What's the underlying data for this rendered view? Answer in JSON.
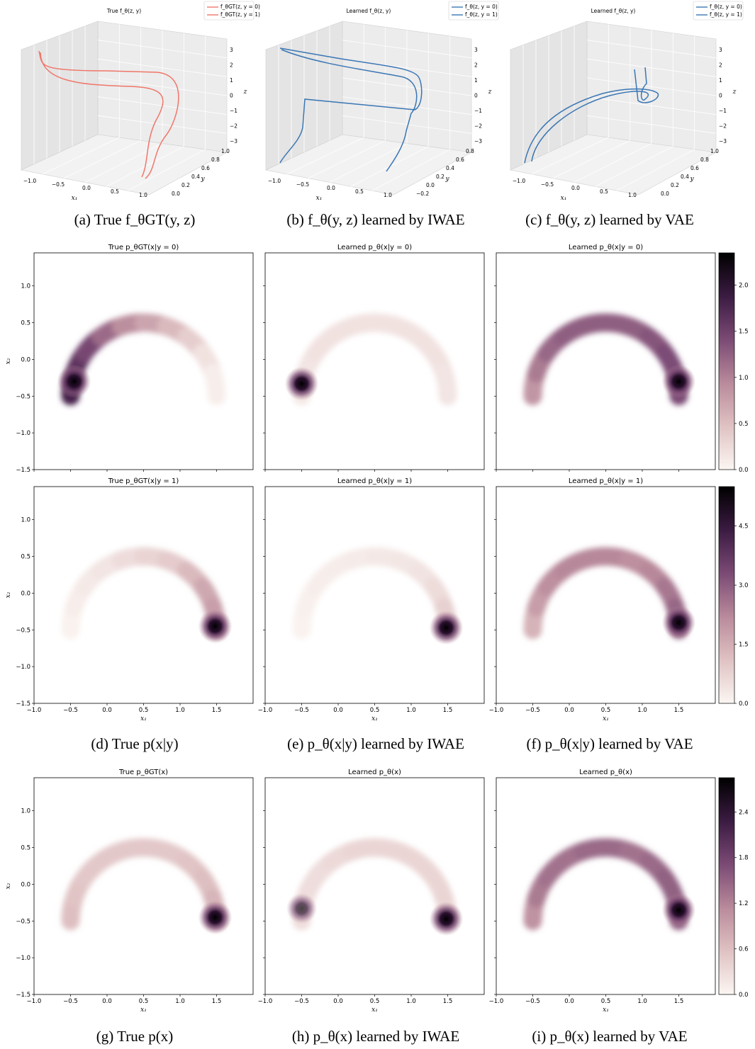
{
  "colors": {
    "true_curve": "#f0766a",
    "learned_curve": "#3a76b4",
    "colormap": [
      "#fbf6f2",
      "#e0c2c3",
      "#b98a9b",
      "#7b4a75",
      "#3b1b42",
      "#000000"
    ]
  },
  "plots3d": [
    {
      "title": "True f_θ(z, y)",
      "color": "true_curve",
      "legend": [
        "f_θGT(z, y = 0)",
        "f_θGT(z, y = 1)"
      ],
      "x1_ticks": [
        "−1.0",
        "−0.5",
        "0.0",
        "0.5",
        "1.0"
      ],
      "y_ticks": [
        "0.0",
        "0.2",
        "0.4",
        "0.6",
        "0.8",
        "1.0"
      ],
      "z_ticks": [
        "3",
        "2",
        "1",
        "0",
        "−1",
        "−2",
        "−3"
      ],
      "caption": "(a) True f_θGT(y, z)"
    },
    {
      "title": "Learned f_θ(z, y)",
      "color": "learned_curve",
      "legend": [
        "f_θ(z, y = 0)",
        "f_θ(z, y = 1)"
      ],
      "x1_ticks": [
        "−1.0",
        "−0.5",
        "0.0",
        "0.5",
        "1.0"
      ],
      "y_ticks": [
        "−0.2",
        "0.0",
        "0.2",
        "0.4",
        "0.6",
        "0.8"
      ],
      "z_ticks": [
        "3",
        "2",
        "1",
        "0",
        "−1",
        "−2",
        "−3"
      ],
      "caption": "(b) f_θ(y, z) learned by IWAE"
    },
    {
      "title": "Learned f_θ(z, y)",
      "color": "learned_curve",
      "legend": [
        "f_θ(z, y = 0)",
        "f_θ(z, y = 1)"
      ],
      "x1_ticks": [
        "−1.0",
        "−0.5",
        "0.0",
        "0.5",
        "1.0"
      ],
      "y_ticks": [
        "0.0",
        "0.2",
        "0.4",
        "0.6",
        "0.8",
        "1.0"
      ],
      "z_ticks": [
        "3",
        "2",
        "1",
        "0",
        "−1",
        "−2",
        "−3"
      ],
      "caption": "(c) f_θ(y, z) learned by VAE"
    }
  ],
  "chart_data": [
    {
      "type": "heatmap",
      "title": "True p_θGT(x|y = 0)",
      "xlabel": "",
      "ylabel": "x2",
      "xlim": [
        -1.0,
        2.0
      ],
      "ylim": [
        -1.5,
        1.45
      ],
      "density": {
        "arc_weights": [
          1.0,
          0.9,
          0.8,
          0.65,
          0.5,
          0.4,
          0.3,
          0.2,
          0.1,
          0.04
        ],
        "peaks": [
          [
            -0.45,
            -0.3,
            2.3
          ]
        ],
        "arc_level": 1.8
      }
    },
    {
      "type": "heatmap",
      "title": "Learned p_θ(x|y = 0)",
      "xlabel": "",
      "ylabel": "",
      "xlim": [
        -1.0,
        2.0
      ],
      "ylim": [
        -1.5,
        1.45
      ],
      "density": {
        "arc_weights": [
          0.2,
          0.25,
          0.3,
          0.3,
          0.3,
          0.3,
          0.3,
          0.3,
          0.3,
          0.25
        ],
        "peaks": [
          [
            -0.5,
            -0.33,
            2.3
          ]
        ],
        "arc_level": 0.6
      }
    },
    {
      "type": "heatmap",
      "title": "Learned p_θ(x|y = 0)",
      "xlabel": "",
      "ylabel": "",
      "xlim": [
        -1.0,
        2.0
      ],
      "ylim": [
        -1.5,
        1.45
      ],
      "density": {
        "arc_weights": [
          0.6,
          0.75,
          0.85,
          0.9,
          0.9,
          0.9,
          0.9,
          0.95,
          1.0,
          1.0
        ],
        "peaks": [
          [
            1.5,
            -0.3,
            2.3
          ]
        ],
        "arc_level": 1.4
      },
      "colorbar": {
        "range": [
          0,
          2.35
        ],
        "ticks": [
          "0.0",
          "0.5",
          "1.0",
          "1.5",
          "2.0"
        ],
        "tick_values": [
          0.0,
          0.5,
          1.0,
          1.5,
          2.0
        ]
      }
    },
    {
      "type": "heatmap",
      "title": "True p_θGT(x|y = 1)",
      "xlabel": "x1",
      "ylabel": "x2",
      "xlim": [
        -1.0,
        2.0
      ],
      "ylim": [
        -1.5,
        1.45
      ],
      "density": {
        "arc_weights": [
          0.05,
          0.1,
          0.15,
          0.2,
          0.3,
          0.4,
          0.5,
          0.7,
          0.9,
          1.0
        ],
        "peaks": [
          [
            1.48,
            -0.45,
            5.5
          ]
        ],
        "arc_level": 1.8
      }
    },
    {
      "type": "heatmap",
      "title": "Learned p_θ(x|y = 1)",
      "xlabel": "x1",
      "ylabel": "",
      "xlim": [
        -1.0,
        2.0
      ],
      "ylim": [
        -1.5,
        1.45
      ],
      "density": {
        "arc_weights": [
          0.05,
          0.08,
          0.1,
          0.12,
          0.15,
          0.18,
          0.2,
          0.25,
          0.35,
          0.5
        ],
        "peaks": [
          [
            1.48,
            -0.47,
            5.5
          ]
        ],
        "arc_level": 1.6
      }
    },
    {
      "type": "heatmap",
      "title": "Learned p_θ(x|y = 1)",
      "xlabel": "x1",
      "ylabel": "",
      "xlim": [
        -1.0,
        2.0
      ],
      "ylim": [
        -1.5,
        1.45
      ],
      "density": {
        "arc_weights": [
          0.5,
          0.65,
          0.75,
          0.8,
          0.8,
          0.8,
          0.75,
          0.8,
          0.9,
          1.0
        ],
        "peaks": [
          [
            1.5,
            -0.4,
            5.4
          ]
        ],
        "arc_level": 2.8
      },
      "colorbar": {
        "range": [
          0,
          5.5
        ],
        "ticks": [
          "0.0",
          "1.5",
          "3.0",
          "4.5"
        ],
        "tick_values": [
          0.0,
          1.5,
          3.0,
          4.5
        ]
      }
    },
    {
      "type": "heatmap",
      "title": "True p_θGT(x)",
      "xlabel": "x1",
      "ylabel": "x2",
      "xlim": [
        -1.0,
        2.0
      ],
      "ylim": [
        -1.5,
        1.45
      ],
      "density": {
        "arc_weights": [
          0.6,
          0.55,
          0.5,
          0.5,
          0.5,
          0.5,
          0.5,
          0.55,
          0.6,
          0.7
        ],
        "peaks": [
          [
            1.48,
            -0.45,
            2.8
          ]
        ],
        "arc_level": 1.0
      }
    },
    {
      "type": "heatmap",
      "title": "Learned p_θ(x)",
      "xlabel": "x1",
      "ylabel": "",
      "xlim": [
        -1.0,
        2.0
      ],
      "ylim": [
        -1.5,
        1.45
      ],
      "density": {
        "arc_weights": [
          0.3,
          0.3,
          0.3,
          0.35,
          0.4,
          0.4,
          0.4,
          0.4,
          0.4,
          0.4
        ],
        "peaks": [
          [
            -0.5,
            -0.33,
            1.7
          ],
          [
            1.48,
            -0.47,
            2.8
          ]
        ],
        "arc_level": 0.9
      }
    },
    {
      "type": "heatmap",
      "title": "Learned p_θ(x)",
      "xlabel": "x1",
      "ylabel": "",
      "xlim": [
        -1.0,
        2.0
      ],
      "ylim": [
        -1.5,
        1.45
      ],
      "density": {
        "arc_weights": [
          0.7,
          0.85,
          0.9,
          0.9,
          0.95,
          0.95,
          0.9,
          0.95,
          1.0,
          1.0
        ],
        "peaks": [
          [
            1.5,
            -0.35,
            2.8
          ]
        ],
        "arc_level": 1.5
      },
      "colorbar": {
        "range": [
          0,
          2.85
        ],
        "ticks": [
          "0.0",
          "0.6",
          "1.2",
          "1.8",
          "2.4"
        ],
        "tick_values": [
          0.0,
          0.6,
          1.2,
          1.8,
          2.4
        ]
      }
    }
  ],
  "x1_ticks": [
    "−1.0",
    "−0.5",
    "0.0",
    "0.5",
    "1.0",
    "1.5"
  ],
  "x1_tick_values": [
    -1.0,
    -0.5,
    0.0,
    0.5,
    1.0,
    1.5
  ],
  "x2_ticks": [
    "−1.5",
    "−1.0",
    "−0.5",
    "0.0",
    "0.5",
    "1.0"
  ],
  "x2_tick_values": [
    -1.5,
    -1.0,
    -0.5,
    0.0,
    0.5,
    1.0
  ],
  "captions": {
    "row2": [
      "(d) True p(x|y)",
      "(e) p_θ(x|y) learned by IWAE",
      "(f) p_θ(x|y) learned by VAE"
    ],
    "row3": [
      "(g) True p(x)",
      "(h) p_θ(x) learned by IWAE",
      "(i) p_θ(x) learned by VAE"
    ]
  }
}
